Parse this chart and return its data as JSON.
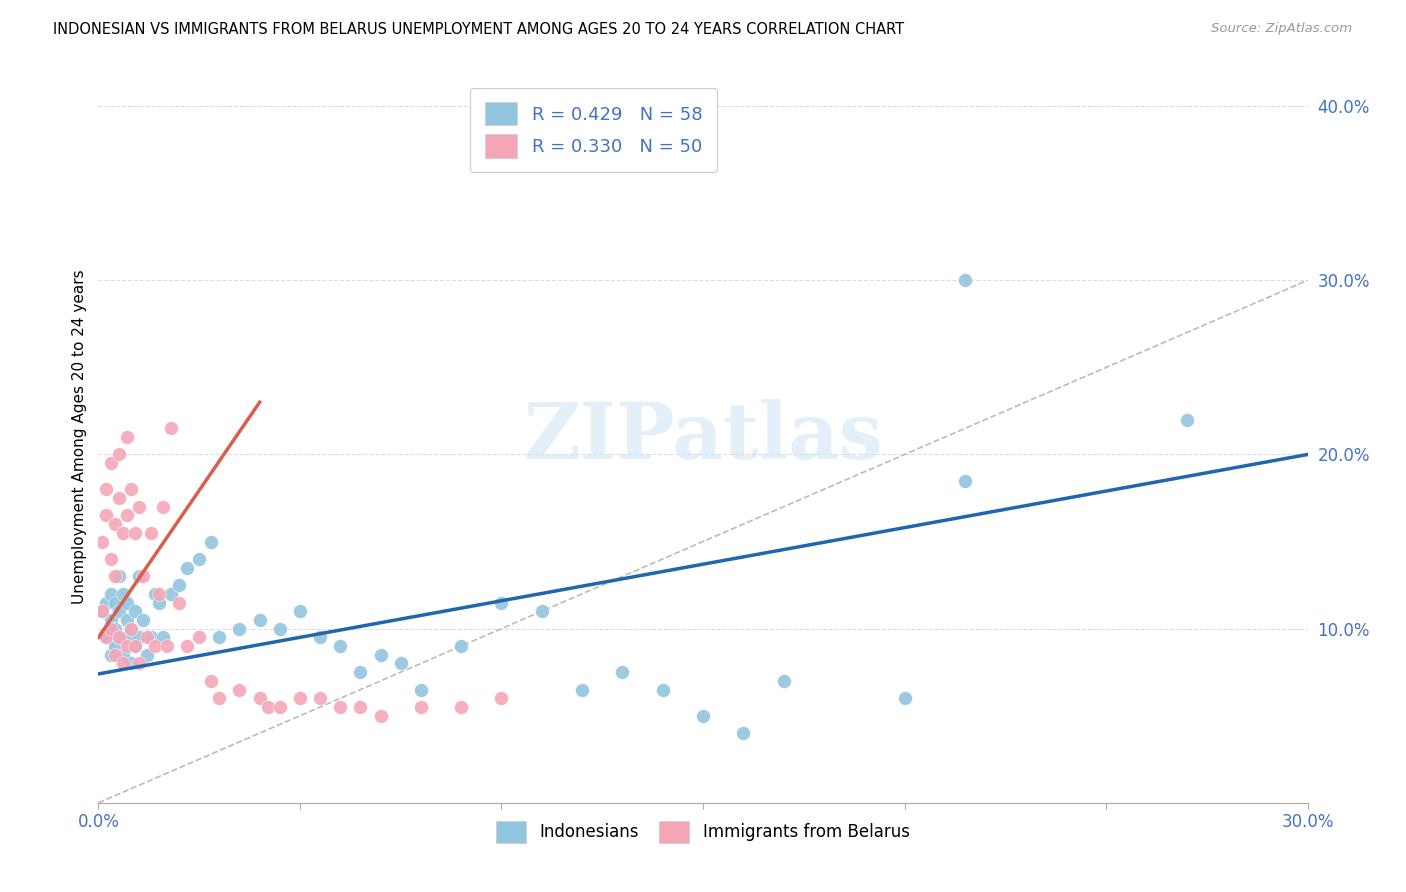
{
  "title": "INDONESIAN VS IMMIGRANTS FROM BELARUS UNEMPLOYMENT AMONG AGES 20 TO 24 YEARS CORRELATION CHART",
  "source": "Source: ZipAtlas.com",
  "ylabel": "Unemployment Among Ages 20 to 24 years",
  "xlim": [
    0.0,
    0.3
  ],
  "ylim": [
    0.0,
    0.42
  ],
  "y_ticks_right": [
    0.1,
    0.2,
    0.3,
    0.4
  ],
  "y_tick_labels_right": [
    "10.0%",
    "20.0%",
    "30.0%",
    "40.0%"
  ],
  "watermark_text": "ZIPatlas",
  "blue_color": "#92c5de",
  "pink_color": "#f4a6b8",
  "blue_line_color": "#2166ac",
  "pink_line_color": "#d6604d",
  "diag_line_color": "#bbbbbb",
  "grid_color": "#dddddd",
  "indo_x": [
    0.001,
    0.002,
    0.002,
    0.003,
    0.003,
    0.003,
    0.004,
    0.004,
    0.004,
    0.005,
    0.005,
    0.005,
    0.006,
    0.006,
    0.007,
    0.007,
    0.007,
    0.008,
    0.008,
    0.009,
    0.009,
    0.01,
    0.01,
    0.011,
    0.012,
    0.013,
    0.014,
    0.015,
    0.016,
    0.018,
    0.02,
    0.022,
    0.025,
    0.028,
    0.03,
    0.035,
    0.04,
    0.045,
    0.05,
    0.055,
    0.06,
    0.065,
    0.07,
    0.075,
    0.08,
    0.09,
    0.1,
    0.11,
    0.12,
    0.13,
    0.14,
    0.15,
    0.16,
    0.17,
    0.2,
    0.215,
    0.215,
    0.27
  ],
  "indo_y": [
    0.11,
    0.095,
    0.115,
    0.085,
    0.105,
    0.12,
    0.09,
    0.1,
    0.115,
    0.095,
    0.11,
    0.13,
    0.085,
    0.12,
    0.095,
    0.105,
    0.115,
    0.08,
    0.1,
    0.09,
    0.11,
    0.095,
    0.13,
    0.105,
    0.085,
    0.095,
    0.12,
    0.115,
    0.095,
    0.12,
    0.125,
    0.135,
    0.14,
    0.15,
    0.095,
    0.1,
    0.105,
    0.1,
    0.11,
    0.095,
    0.09,
    0.075,
    0.085,
    0.08,
    0.065,
    0.09,
    0.115,
    0.11,
    0.065,
    0.075,
    0.065,
    0.05,
    0.04,
    0.07,
    0.06,
    0.3,
    0.185,
    0.22
  ],
  "bel_x": [
    0.001,
    0.001,
    0.002,
    0.002,
    0.002,
    0.003,
    0.003,
    0.003,
    0.004,
    0.004,
    0.004,
    0.005,
    0.005,
    0.005,
    0.006,
    0.006,
    0.007,
    0.007,
    0.007,
    0.008,
    0.008,
    0.009,
    0.009,
    0.01,
    0.01,
    0.011,
    0.012,
    0.013,
    0.014,
    0.015,
    0.016,
    0.017,
    0.018,
    0.02,
    0.022,
    0.025,
    0.028,
    0.03,
    0.035,
    0.04,
    0.042,
    0.045,
    0.05,
    0.055,
    0.06,
    0.065,
    0.07,
    0.08,
    0.09,
    0.1
  ],
  "bel_y": [
    0.11,
    0.15,
    0.095,
    0.165,
    0.18,
    0.1,
    0.14,
    0.195,
    0.085,
    0.13,
    0.16,
    0.095,
    0.175,
    0.2,
    0.08,
    0.155,
    0.09,
    0.165,
    0.21,
    0.1,
    0.18,
    0.09,
    0.155,
    0.08,
    0.17,
    0.13,
    0.095,
    0.155,
    0.09,
    0.12,
    0.17,
    0.09,
    0.215,
    0.115,
    0.09,
    0.095,
    0.07,
    0.06,
    0.065,
    0.06,
    0.055,
    0.055,
    0.06,
    0.06,
    0.055,
    0.055,
    0.05,
    0.055,
    0.055,
    0.06
  ],
  "blue_trend_x": [
    0.0,
    0.3
  ],
  "blue_trend_y": [
    0.074,
    0.2
  ],
  "pink_trend_x": [
    0.0,
    0.04
  ],
  "pink_trend_y": [
    0.095,
    0.23
  ]
}
